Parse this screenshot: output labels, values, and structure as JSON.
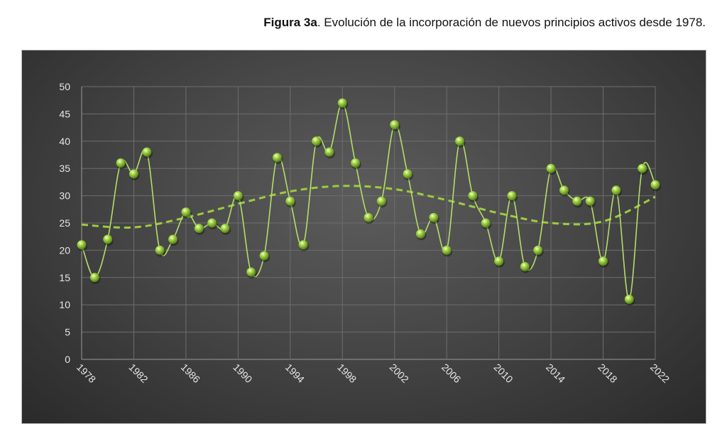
{
  "caption": {
    "bold": "Figura 3a",
    "text": ". Evolución de la incorporación de nuevos principios activos desde 1978."
  },
  "chart_data": {
    "type": "line",
    "title": "Figura 3a. Evolución de la incorporación de nuevos principios activos desde 1978.",
    "xlabel": "",
    "ylabel": "",
    "x": [
      1978,
      1979,
      1980,
      1981,
      1982,
      1983,
      1984,
      1985,
      1986,
      1987,
      1988,
      1989,
      1990,
      1991,
      1992,
      1993,
      1994,
      1995,
      1996,
      1997,
      1998,
      1999,
      2000,
      2001,
      2002,
      2003,
      2004,
      2005,
      2006,
      2007,
      2008,
      2009,
      2010,
      2011,
      2012,
      2013,
      2014,
      2015,
      2016,
      2017,
      2018,
      2019,
      2020,
      2021,
      2022
    ],
    "series": [
      {
        "name": "Nuevos principios activos",
        "values": [
          21,
          15,
          22,
          36,
          34,
          38,
          20,
          22,
          27,
          24,
          25,
          24,
          30,
          16,
          19,
          37,
          29,
          21,
          40,
          38,
          47,
          36,
          26,
          29,
          43,
          34,
          23,
          26,
          20,
          40,
          30,
          25,
          18,
          30,
          17,
          20,
          35,
          31,
          29,
          29,
          18,
          31,
          11,
          35,
          32
        ],
        "color": "#9ccc3c"
      }
    ],
    "trendline": {
      "style": "dashed polynomial",
      "x": [
        1978,
        1982,
        1986,
        1990,
        1994,
        1998,
        2002,
        2006,
        2010,
        2014,
        2018,
        2022
      ],
      "values": [
        24.7,
        24.2,
        26,
        28.5,
        30.8,
        31.8,
        31.2,
        29.2,
        26.8,
        25,
        25.3,
        29.8
      ],
      "color": "#9ccc3c"
    },
    "ylim": [
      0,
      50
    ],
    "yticks": [
      0,
      5,
      10,
      15,
      20,
      25,
      30,
      35,
      40,
      45,
      50
    ],
    "xlim": [
      1978,
      2022
    ],
    "xticks": [
      1978,
      1982,
      1986,
      1990,
      1994,
      1998,
      2002,
      2006,
      2010,
      2014,
      2018,
      2022
    ],
    "grid": true,
    "legend": "none"
  }
}
